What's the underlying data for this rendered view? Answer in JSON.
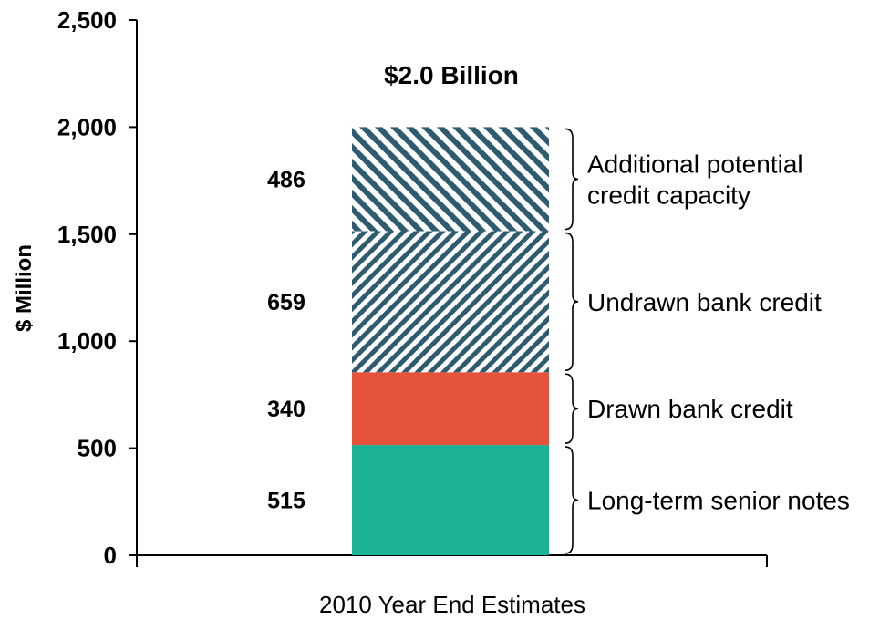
{
  "chart_data": {
    "type": "bar",
    "stacked": true,
    "categories": [
      "2010 Year End Estimates"
    ],
    "xlabel": "2010 Year End Estimates",
    "ylabel": "$ Million",
    "ylim": [
      0,
      2500
    ],
    "yticks": [
      0,
      500,
      1000,
      1500,
      2000,
      2500
    ],
    "ytick_labels": [
      "0",
      "500",
      "1,000",
      "1,500",
      "2,000",
      "2,500"
    ],
    "total_label": "$2.0 Billion",
    "grid": false,
    "series": [
      {
        "name": "Long-term senior notes",
        "values": [
          515
        ],
        "value_label": "515",
        "color": "#1bb394",
        "fill": "solid"
      },
      {
        "name": "Drawn bank credit",
        "values": [
          340
        ],
        "value_label": "340",
        "color": "#e5533a",
        "fill": "solid"
      },
      {
        "name": "Undrawn bank credit",
        "values": [
          659
        ],
        "value_label": "659",
        "color": "#2e5b70",
        "fill": "diagonal-hatch-dense"
      },
      {
        "name": "Additional potential credit capacity",
        "name_lines": [
          "Additional potential",
          "credit capacity"
        ],
        "values": [
          486
        ],
        "value_label": "486",
        "color": "#2e5b70",
        "fill": "diagonal-hatch-wide"
      }
    ]
  }
}
